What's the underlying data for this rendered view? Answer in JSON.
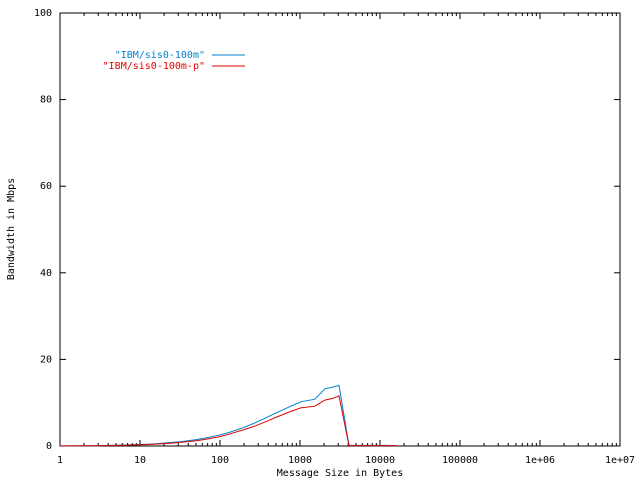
{
  "chart_data": {
    "type": "line",
    "title": "",
    "xlabel": "Message Size in Bytes",
    "ylabel": "Bandwidth in Mbps",
    "x_scale": "log",
    "xlim": [
      1,
      10000000
    ],
    "ylim": [
      0,
      100
    ],
    "x_ticks": [
      1,
      10,
      100,
      1000,
      10000,
      100000,
      1000000,
      10000000
    ],
    "x_tick_labels": [
      "1",
      "10",
      "100",
      "1000",
      "10000",
      "100000",
      "1e+06",
      "1e+07"
    ],
    "y_ticks": [
      0,
      20,
      40,
      60,
      80,
      100
    ],
    "y_tick_labels": [
      "0",
      "20",
      "40",
      "60",
      "80",
      "100"
    ],
    "grid": false,
    "legend_position": "top-left",
    "series": [
      {
        "name": "\"IBM/sis0-100m\"",
        "color": "#0080d0",
        "x": [
          1,
          2,
          3,
          4,
          6,
          8,
          12,
          16,
          24,
          32,
          48,
          64,
          96,
          128,
          192,
          256,
          384,
          512,
          768,
          1024,
          1536,
          2048,
          2560,
          3072,
          4096,
          6144,
          8192,
          12288,
          16384
        ],
        "y": [
          0.03,
          0.06,
          0.1,
          0.14,
          0.2,
          0.27,
          0.4,
          0.53,
          0.8,
          1.0,
          1.4,
          1.8,
          2.5,
          3.1,
          4.2,
          5.1,
          6.6,
          7.7,
          9.2,
          10.2,
          10.8,
          13.2,
          13.6,
          14.0,
          0.15,
          0.15,
          0.15,
          0.15,
          0.1
        ]
      },
      {
        "name": "\"IBM/sis0-100m-p\"",
        "color": "#e00000",
        "x": [
          1,
          2,
          3,
          4,
          6,
          8,
          12,
          16,
          24,
          32,
          48,
          64,
          96,
          128,
          192,
          256,
          384,
          512,
          768,
          1024,
          1536,
          2048,
          2560,
          3072,
          4096,
          6144,
          8192,
          12288,
          16384
        ],
        "y": [
          0.02,
          0.05,
          0.08,
          0.11,
          0.16,
          0.22,
          0.32,
          0.43,
          0.64,
          0.82,
          1.15,
          1.5,
          2.1,
          2.7,
          3.7,
          4.4,
          5.7,
          6.7,
          8.0,
          8.8,
          9.2,
          10.6,
          11.0,
          11.6,
          0.1,
          0.1,
          0.1,
          0.1,
          0.05
        ]
      }
    ]
  }
}
